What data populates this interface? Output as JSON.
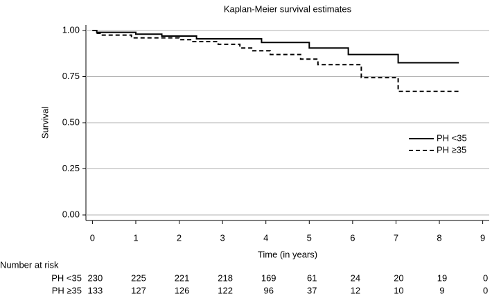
{
  "chart_data": {
    "type": "line",
    "title": "Kaplan-Meier survival estimates",
    "xlabel": "Time (in years)",
    "ylabel": "Survival",
    "xlim": [
      -0.15,
      9.15
    ],
    "ylim": [
      -0.03,
      1.03
    ],
    "xticks": [
      0,
      1,
      2,
      3,
      4,
      5,
      6,
      7,
      8,
      9
    ],
    "yticks": [
      {
        "value": 0,
        "label": "0.00"
      },
      {
        "value": 0.25,
        "label": "0.25"
      },
      {
        "value": 0.5,
        "label": "0.50"
      },
      {
        "value": 0.75,
        "label": "0.75"
      },
      {
        "value": 1,
        "label": "1.00"
      }
    ],
    "grid": true,
    "step": "post",
    "legend": "right",
    "series": [
      {
        "name": "PH <35",
        "color": "#000000",
        "dashed": false,
        "x": [
          0,
          0.1,
          1.0,
          1.6,
          2.4,
          3.9,
          5.0,
          5.9,
          7.05,
          8.45
        ],
        "values": [
          1.0,
          0.99,
          0.98,
          0.97,
          0.955,
          0.935,
          0.905,
          0.87,
          0.825,
          0.825
        ]
      },
      {
        "name": "PH ≥35",
        "color": "#000000",
        "dashed": true,
        "x": [
          0,
          0.08,
          0.2,
          0.9,
          2.0,
          2.3,
          2.9,
          3.4,
          3.7,
          4.1,
          4.8,
          5.2,
          6.2,
          7.05,
          8.45
        ],
        "values": [
          1.0,
          0.985,
          0.975,
          0.96,
          0.95,
          0.94,
          0.925,
          0.905,
          0.89,
          0.87,
          0.845,
          0.815,
          0.745,
          0.67,
          0.67
        ]
      }
    ],
    "risk_table": {
      "title": "Number at risk",
      "times": [
        0,
        1,
        2,
        3,
        4,
        5,
        6,
        7,
        8,
        9
      ],
      "rows": [
        {
          "name": "PH <35",
          "values": [
            230,
            225,
            221,
            218,
            169,
            61,
            24,
            20,
            19,
            0
          ]
        },
        {
          "name": "PH ≥35",
          "values": [
            133,
            127,
            126,
            122,
            96,
            37,
            12,
            10,
            9,
            0
          ]
        }
      ]
    }
  }
}
